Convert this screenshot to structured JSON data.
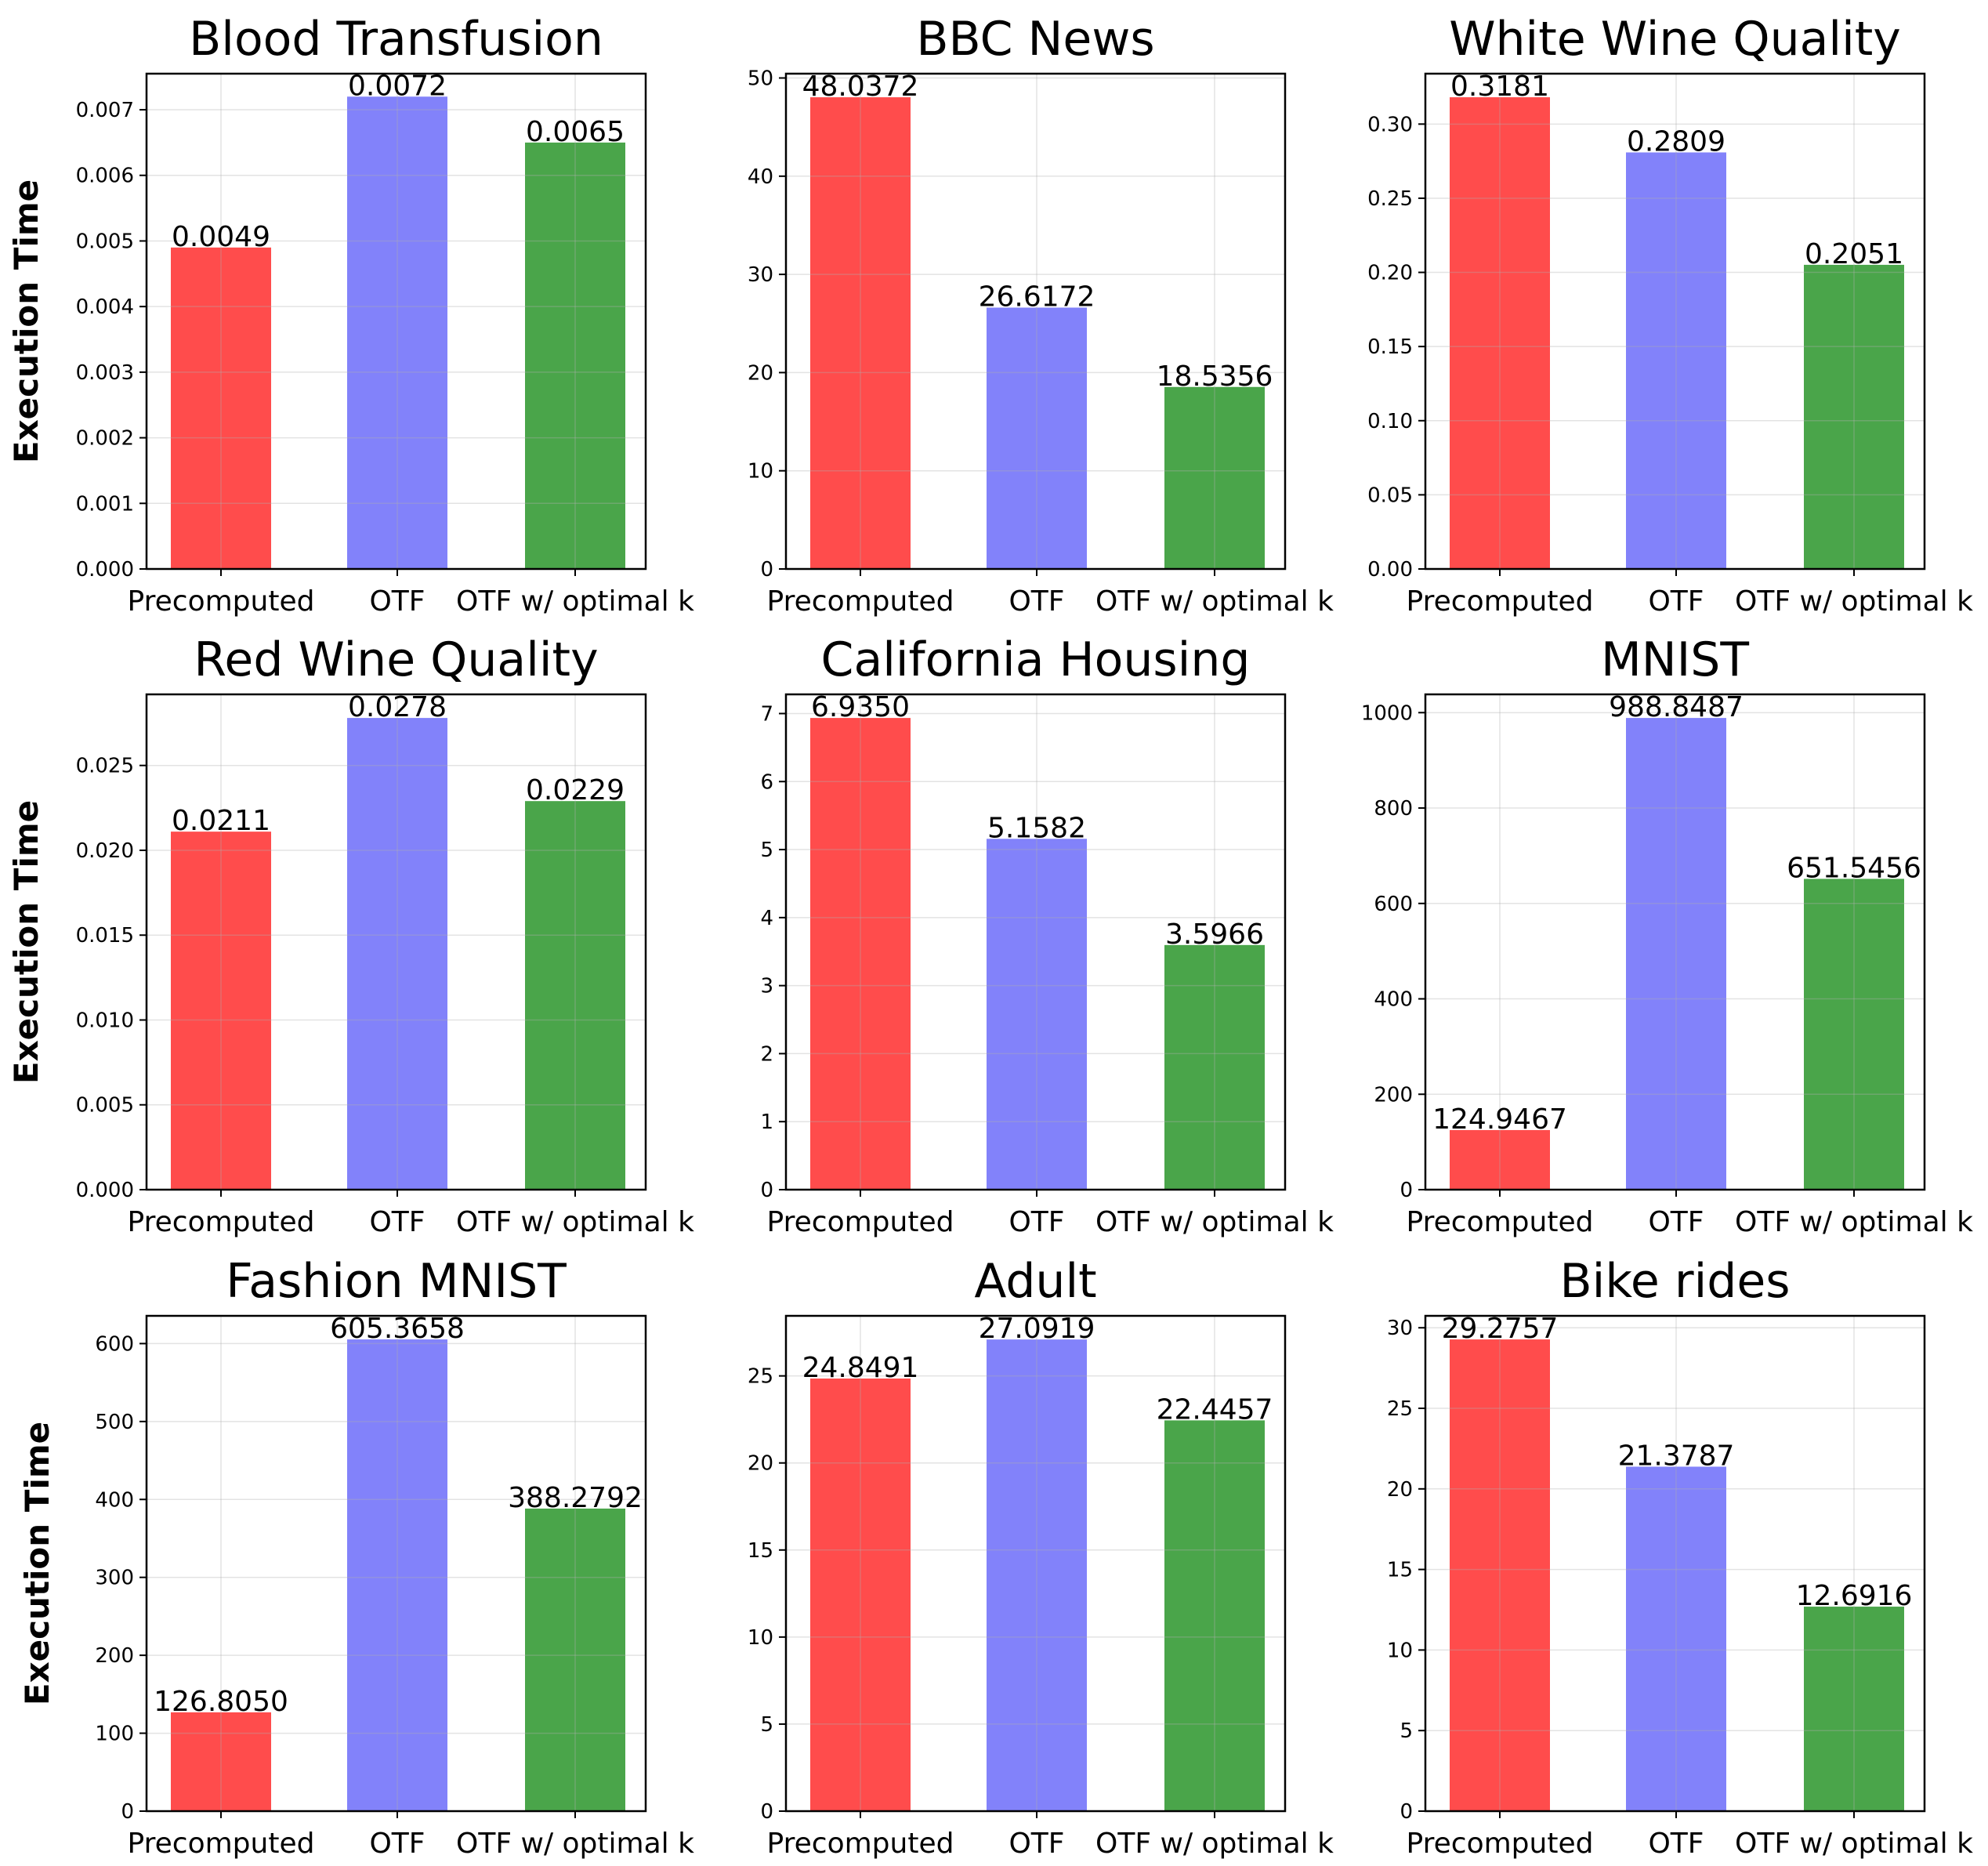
{
  "colors": {
    "precomputed": "#ff4c4c",
    "otf": "#8282fa",
    "otf_optimal_k": "#4aa54a"
  },
  "chart_data": [
    {
      "type": "bar",
      "title": "Blood Transfusion",
      "ylabel": "Execution Time",
      "categories": [
        "Precomputed",
        "OTF",
        "OTF w/ optimal k"
      ],
      "values": [
        0.0049,
        0.0072,
        0.0065
      ],
      "value_labels": [
        "0.0049",
        "0.0072",
        "0.0065"
      ],
      "ylim": [
        0,
        0.00755
      ],
      "yticks": [
        0,
        0.001,
        0.002,
        0.003,
        0.004,
        0.005,
        0.006,
        0.007
      ],
      "ytick_labels": [
        "0.000",
        "0.001",
        "0.002",
        "0.003",
        "0.004",
        "0.005",
        "0.006",
        "0.007"
      ],
      "grid": true
    },
    {
      "type": "bar",
      "title": "BBC News",
      "ylabel": "",
      "categories": [
        "Precomputed",
        "OTF",
        "OTF w/ optimal k"
      ],
      "values": [
        48.0372,
        26.6172,
        18.5356
      ],
      "value_labels": [
        "48.0372",
        "26.6172",
        "18.5356"
      ],
      "ylim": [
        0,
        50.44
      ],
      "yticks": [
        0,
        10,
        20,
        30,
        40,
        50
      ],
      "ytick_labels": [
        "0",
        "10",
        "20",
        "30",
        "40",
        "50"
      ],
      "grid": true
    },
    {
      "type": "bar",
      "title": "White Wine Quality",
      "ylabel": "",
      "categories": [
        "Precomputed",
        "OTF",
        "OTF w/ optimal k"
      ],
      "values": [
        0.3181,
        0.2809,
        0.2051
      ],
      "value_labels": [
        "0.3181",
        "0.2809",
        "0.2051"
      ],
      "ylim": [
        0,
        0.334
      ],
      "yticks": [
        0,
        0.05,
        0.1,
        0.15,
        0.2,
        0.25,
        0.3
      ],
      "ytick_labels": [
        "0.00",
        "0.05",
        "0.10",
        "0.15",
        "0.20",
        "0.25",
        "0.30"
      ],
      "grid": true
    },
    {
      "type": "bar",
      "title": "Red Wine Quality",
      "ylabel": "Execution Time",
      "categories": [
        "Precomputed",
        "OTF",
        "OTF w/ optimal k"
      ],
      "values": [
        0.0211,
        0.0278,
        0.0229
      ],
      "value_labels": [
        "0.0211",
        "0.0278",
        "0.0229"
      ],
      "ylim": [
        0,
        0.02919
      ],
      "yticks": [
        0,
        0.005,
        0.01,
        0.015,
        0.02,
        0.025
      ],
      "ytick_labels": [
        "0.000",
        "0.005",
        "0.010",
        "0.015",
        "0.020",
        "0.025"
      ],
      "grid": true
    },
    {
      "type": "bar",
      "title": "California Housing",
      "ylabel": "",
      "categories": [
        "Precomputed",
        "OTF",
        "OTF w/ optimal k"
      ],
      "values": [
        6.935,
        5.1582,
        3.5966
      ],
      "value_labels": [
        "6.9350",
        "5.1582",
        "3.5966"
      ],
      "ylim": [
        0,
        7.282
      ],
      "yticks": [
        0,
        1,
        2,
        3,
        4,
        5,
        6,
        7
      ],
      "ytick_labels": [
        "0",
        "1",
        "2",
        "3",
        "4",
        "5",
        "6",
        "7"
      ],
      "grid": true
    },
    {
      "type": "bar",
      "title": "MNIST",
      "ylabel": "",
      "categories": [
        "Precomputed",
        "OTF",
        "OTF w/ optimal k"
      ],
      "values": [
        124.9467,
        988.8487,
        651.5456
      ],
      "value_labels": [
        "124.9467",
        "988.8487",
        "651.5456"
      ],
      "ylim": [
        0,
        1038.3
      ],
      "yticks": [
        0,
        200,
        400,
        600,
        800,
        1000
      ],
      "ytick_labels": [
        "0",
        "200",
        "400",
        "600",
        "800",
        "1000"
      ],
      "grid": true
    },
    {
      "type": "bar",
      "title": "Fashion MNIST",
      "ylabel": "Execution Time",
      "categories": [
        "Precomputed",
        "OTF",
        "OTF w/ optimal k"
      ],
      "values": [
        126.805,
        605.3658,
        388.2792
      ],
      "value_labels": [
        "126.8050",
        "605.3658",
        "388.2792"
      ],
      "ylim": [
        0,
        635.6
      ],
      "yticks": [
        0,
        100,
        200,
        300,
        400,
        500,
        600
      ],
      "ytick_labels": [
        "0",
        "100",
        "200",
        "300",
        "400",
        "500",
        "600"
      ],
      "grid": true
    },
    {
      "type": "bar",
      "title": "Adult",
      "ylabel": "",
      "categories": [
        "Precomputed",
        "OTF",
        "OTF w/ optimal k"
      ],
      "values": [
        24.8491,
        27.0919,
        22.4457
      ],
      "value_labels": [
        "24.8491",
        "27.0919",
        "22.4457"
      ],
      "ylim": [
        0,
        28.45
      ],
      "yticks": [
        0,
        5,
        10,
        15,
        20,
        25
      ],
      "ytick_labels": [
        "0",
        "5",
        "10",
        "15",
        "20",
        "25"
      ],
      "grid": true
    },
    {
      "type": "bar",
      "title": "Bike rides",
      "ylabel": "",
      "categories": [
        "Precomputed",
        "OTF",
        "OTF w/ optimal k"
      ],
      "values": [
        29.2757,
        21.3787,
        12.6916
      ],
      "value_labels": [
        "29.2757",
        "21.3787",
        "12.6916"
      ],
      "ylim": [
        0,
        30.74
      ],
      "yticks": [
        0,
        5,
        10,
        15,
        20,
        25,
        30
      ],
      "ytick_labels": [
        "0",
        "5",
        "10",
        "15",
        "20",
        "25",
        "30"
      ],
      "grid": true
    }
  ]
}
